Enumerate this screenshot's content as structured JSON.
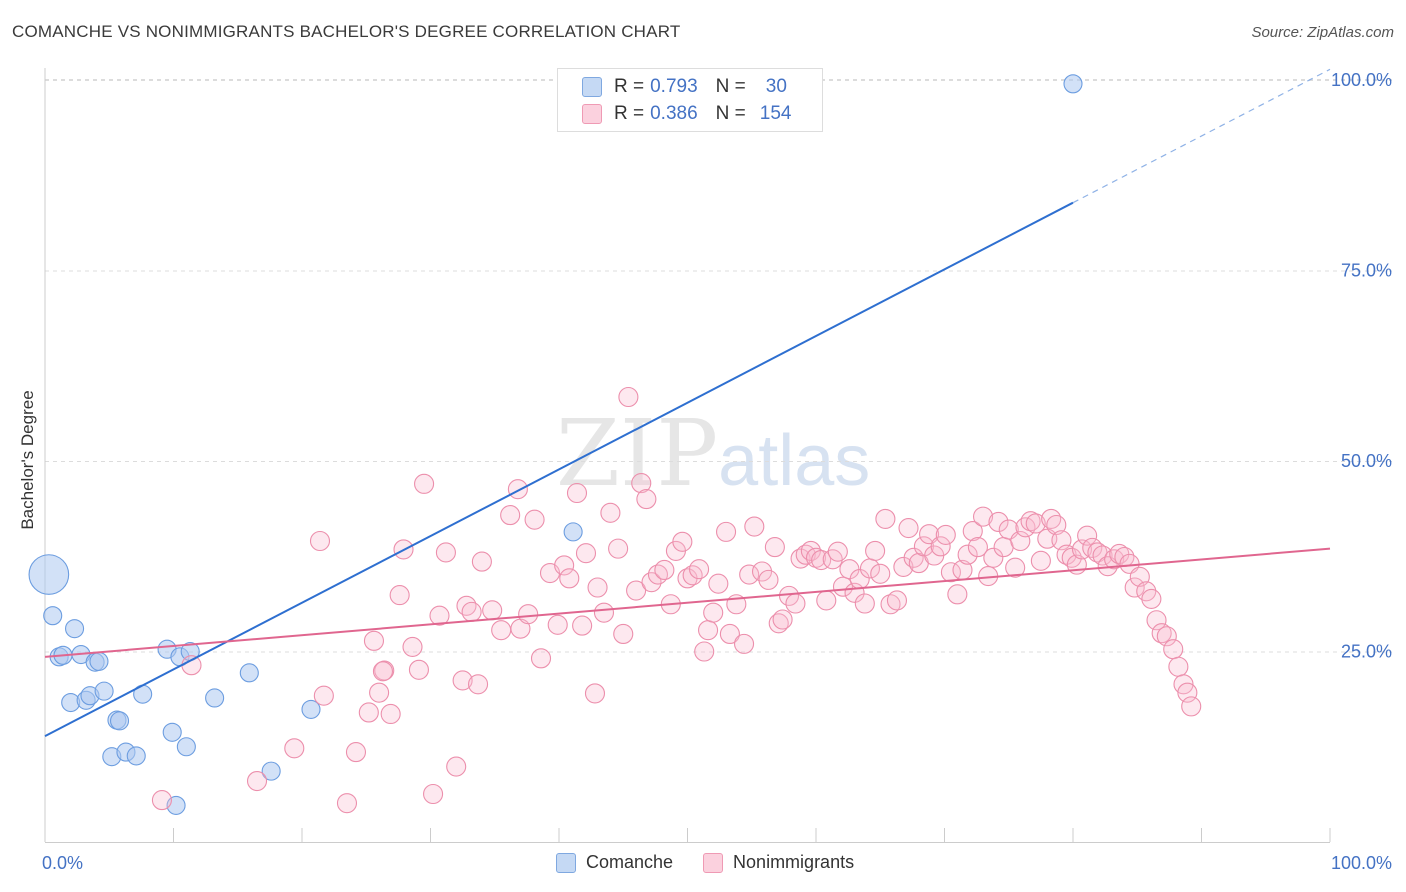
{
  "header": {
    "title": "COMANCHE VS NONIMMIGRANTS BACHELOR'S DEGREE CORRELATION CHART",
    "source": "Source: ZipAtlas.com"
  },
  "legend": {
    "rows": [
      {
        "r_label": "R =",
        "r_value": "0.793",
        "n_label": "N =",
        "n_value": "30",
        "color": "#7fa8e0"
      },
      {
        "r_label": "R =",
        "r_value": "0.386",
        "n_label": "N =",
        "n_value": "154",
        "color": "#ef9ab4"
      }
    ]
  },
  "bottom_legend": {
    "items": [
      {
        "label": "Comanche",
        "color": "#7fa8e0"
      },
      {
        "label": "Nonimmigrants",
        "color": "#ef9ab4"
      }
    ]
  },
  "watermark": {
    "main": "ZIP",
    "sub": "atlas"
  },
  "chart_data": {
    "type": "scatter",
    "title": "COMANCHE VS NONIMMIGRANTS BACHELOR'S DEGREE CORRELATION CHART",
    "xlabel": "",
    "ylabel": "Bachelor's Degree",
    "xlim": [
      0,
      100
    ],
    "ylim": [
      0,
      100
    ],
    "x_tick_labels": [
      "0.0%",
      "100.0%"
    ],
    "y_ticks": [
      {
        "value": 25,
        "label": "25.0%"
      },
      {
        "value": 50,
        "label": "50.0%"
      },
      {
        "value": 75,
        "label": "75.0%"
      },
      {
        "value": 100,
        "label": "100.0%"
      }
    ],
    "series": [
      {
        "name": "Comanche",
        "color": "#6c9de0",
        "R": 0.793,
        "N": 30,
        "trend": {
          "x0": 0,
          "y0": 13.9,
          "x1": 80,
          "y1": 83.9,
          "dashed_to_x": 100,
          "dashed_to_y": 101.4
        },
        "points": [
          [
            0.3,
            35.1,
            2.2
          ],
          [
            0.6,
            29.7,
            1
          ],
          [
            1.1,
            24.3,
            1
          ],
          [
            1.4,
            24.5,
            1
          ],
          [
            2.0,
            18.3,
            1
          ],
          [
            2.3,
            28.0,
            1
          ],
          [
            2.8,
            24.6,
            1
          ],
          [
            3.2,
            18.6,
            1
          ],
          [
            3.5,
            19.2,
            1
          ],
          [
            3.9,
            23.6,
            1
          ],
          [
            4.2,
            23.7,
            1
          ],
          [
            4.6,
            19.8,
            1
          ],
          [
            5.2,
            11.2,
            1
          ],
          [
            5.6,
            16.0,
            1
          ],
          [
            5.8,
            15.9,
            1
          ],
          [
            6.3,
            11.8,
            1
          ],
          [
            7.1,
            11.3,
            1
          ],
          [
            7.6,
            19.4,
            1
          ],
          [
            9.5,
            25.3,
            1
          ],
          [
            9.9,
            14.4,
            1
          ],
          [
            10.2,
            4.8,
            1
          ],
          [
            10.5,
            24.3,
            1
          ],
          [
            11.0,
            12.5,
            1
          ],
          [
            11.3,
            25.0,
            1
          ],
          [
            13.2,
            18.9,
            1
          ],
          [
            15.9,
            22.2,
            1
          ],
          [
            17.6,
            9.3,
            1
          ],
          [
            20.7,
            17.4,
            1
          ],
          [
            41.1,
            40.7,
            1
          ],
          [
            80.0,
            99.5,
            1
          ]
        ]
      },
      {
        "name": "Nonimmigrants",
        "color": "#ec8fac",
        "R": 0.386,
        "N": 154,
        "trend": {
          "x0": 0,
          "y0": 24.3,
          "x1": 100,
          "y1": 38.5
        },
        "points": [
          [
            9.1,
            5.5
          ],
          [
            11.4,
            23.2
          ],
          [
            16.5,
            8.0
          ],
          [
            19.4,
            12.3
          ],
          [
            21.4,
            39.5
          ],
          [
            21.7,
            19.2
          ],
          [
            23.5,
            5.1
          ],
          [
            24.2,
            11.8
          ],
          [
            25.2,
            17.0
          ],
          [
            25.6,
            26.4
          ],
          [
            26.0,
            19.6
          ],
          [
            26.4,
            22.5
          ],
          [
            26.9,
            16.8
          ],
          [
            27.6,
            32.4
          ],
          [
            27.9,
            38.4
          ],
          [
            28.6,
            25.6
          ],
          [
            29.1,
            22.6
          ],
          [
            29.5,
            47.0
          ],
          [
            30.2,
            6.3
          ],
          [
            30.7,
            29.7
          ],
          [
            31.2,
            38.0
          ],
          [
            32.0,
            9.9
          ],
          [
            32.5,
            21.2
          ],
          [
            32.8,
            31.0
          ],
          [
            33.2,
            30.2
          ],
          [
            33.7,
            20.7
          ],
          [
            34.0,
            36.8
          ],
          [
            34.8,
            30.4
          ],
          [
            35.5,
            27.8
          ],
          [
            36.2,
            42.9
          ],
          [
            36.8,
            46.3
          ],
          [
            37.0,
            28.0
          ],
          [
            37.6,
            29.9
          ],
          [
            38.1,
            42.3
          ],
          [
            38.6,
            24.1
          ],
          [
            39.3,
            35.3
          ],
          [
            39.9,
            28.5
          ],
          [
            40.4,
            36.3
          ],
          [
            40.8,
            34.6
          ],
          [
            41.4,
            45.8
          ],
          [
            41.8,
            28.4
          ],
          [
            42.1,
            37.9
          ],
          [
            42.8,
            19.5
          ],
          [
            43.0,
            33.4
          ],
          [
            43.5,
            30.1
          ],
          [
            44.0,
            43.2
          ],
          [
            44.6,
            38.5
          ],
          [
            45.0,
            27.3
          ],
          [
            45.4,
            58.4
          ],
          [
            46.0,
            33.0
          ],
          [
            46.4,
            47.1
          ],
          [
            46.8,
            45.0
          ],
          [
            47.2,
            34.1
          ],
          [
            47.7,
            35.1
          ],
          [
            48.2,
            35.7
          ],
          [
            48.7,
            31.2
          ],
          [
            49.1,
            38.2
          ],
          [
            49.6,
            39.4
          ],
          [
            50.0,
            34.6
          ],
          [
            50.4,
            35.0
          ],
          [
            50.9,
            35.8
          ],
          [
            51.3,
            25.0
          ],
          [
            51.6,
            27.8
          ],
          [
            52.0,
            30.1
          ],
          [
            52.4,
            33.9
          ],
          [
            53.0,
            40.7
          ],
          [
            53.3,
            27.3
          ],
          [
            53.8,
            31.2
          ],
          [
            54.4,
            26.0
          ],
          [
            54.8,
            35.1
          ],
          [
            55.2,
            41.4
          ],
          [
            55.8,
            35.5
          ],
          [
            56.3,
            34.4
          ],
          [
            56.8,
            38.7
          ],
          [
            57.1,
            28.7
          ],
          [
            57.4,
            29.2
          ],
          [
            57.9,
            32.3
          ],
          [
            58.4,
            31.3
          ],
          [
            58.8,
            37.2
          ],
          [
            59.2,
            37.7
          ],
          [
            59.6,
            38.2
          ],
          [
            60.0,
            37.3
          ],
          [
            60.4,
            37.0
          ],
          [
            60.8,
            31.7
          ],
          [
            61.3,
            37.1
          ],
          [
            61.7,
            38.1
          ],
          [
            62.1,
            33.5
          ],
          [
            62.6,
            35.8
          ],
          [
            63.0,
            32.7
          ],
          [
            63.4,
            34.5
          ],
          [
            63.8,
            31.3
          ],
          [
            64.2,
            35.9
          ],
          [
            64.6,
            38.2
          ],
          [
            65.0,
            35.2
          ],
          [
            65.4,
            42.4
          ],
          [
            65.8,
            31.2
          ],
          [
            66.3,
            31.7
          ],
          [
            66.8,
            36.1
          ],
          [
            67.2,
            41.2
          ],
          [
            67.6,
            37.3
          ],
          [
            68.0,
            36.6
          ],
          [
            68.4,
            38.8
          ],
          [
            68.8,
            40.4
          ],
          [
            69.2,
            37.6
          ],
          [
            69.7,
            38.8
          ],
          [
            70.1,
            40.3
          ],
          [
            70.5,
            35.4
          ],
          [
            71.0,
            32.5
          ],
          [
            71.4,
            35.7
          ],
          [
            71.8,
            37.7
          ],
          [
            72.2,
            40.8
          ],
          [
            72.6,
            38.7
          ],
          [
            73.0,
            42.7
          ],
          [
            73.4,
            34.9
          ],
          [
            73.8,
            37.3
          ],
          [
            74.2,
            42.0
          ],
          [
            74.6,
            38.7
          ],
          [
            75.0,
            41.0
          ],
          [
            75.5,
            36.0
          ],
          [
            75.9,
            39.5
          ],
          [
            76.3,
            41.3
          ],
          [
            76.7,
            42.1
          ],
          [
            77.1,
            41.8
          ],
          [
            77.5,
            36.9
          ],
          [
            78.0,
            39.8
          ],
          [
            78.3,
            42.4
          ],
          [
            78.7,
            41.6
          ],
          [
            79.1,
            39.6
          ],
          [
            79.5,
            37.7
          ],
          [
            79.9,
            37.3
          ],
          [
            80.3,
            36.4
          ],
          [
            80.7,
            38.4
          ],
          [
            81.1,
            40.2
          ],
          [
            81.5,
            38.6
          ],
          [
            81.9,
            38.0
          ],
          [
            82.3,
            37.6
          ],
          [
            82.7,
            36.2
          ],
          [
            83.2,
            37.1
          ],
          [
            83.6,
            37.8
          ],
          [
            84.0,
            37.4
          ],
          [
            84.4,
            36.5
          ],
          [
            84.8,
            33.4
          ],
          [
            85.2,
            34.8
          ],
          [
            85.7,
            32.9
          ],
          [
            86.1,
            31.9
          ],
          [
            86.5,
            29.1
          ],
          [
            86.9,
            27.4
          ],
          [
            87.3,
            27.0
          ],
          [
            87.8,
            25.3
          ],
          [
            88.2,
            23.0
          ],
          [
            88.6,
            20.7
          ],
          [
            88.9,
            19.6
          ],
          [
            89.2,
            17.8
          ],
          [
            26.3,
            22.4
          ]
        ]
      }
    ]
  }
}
